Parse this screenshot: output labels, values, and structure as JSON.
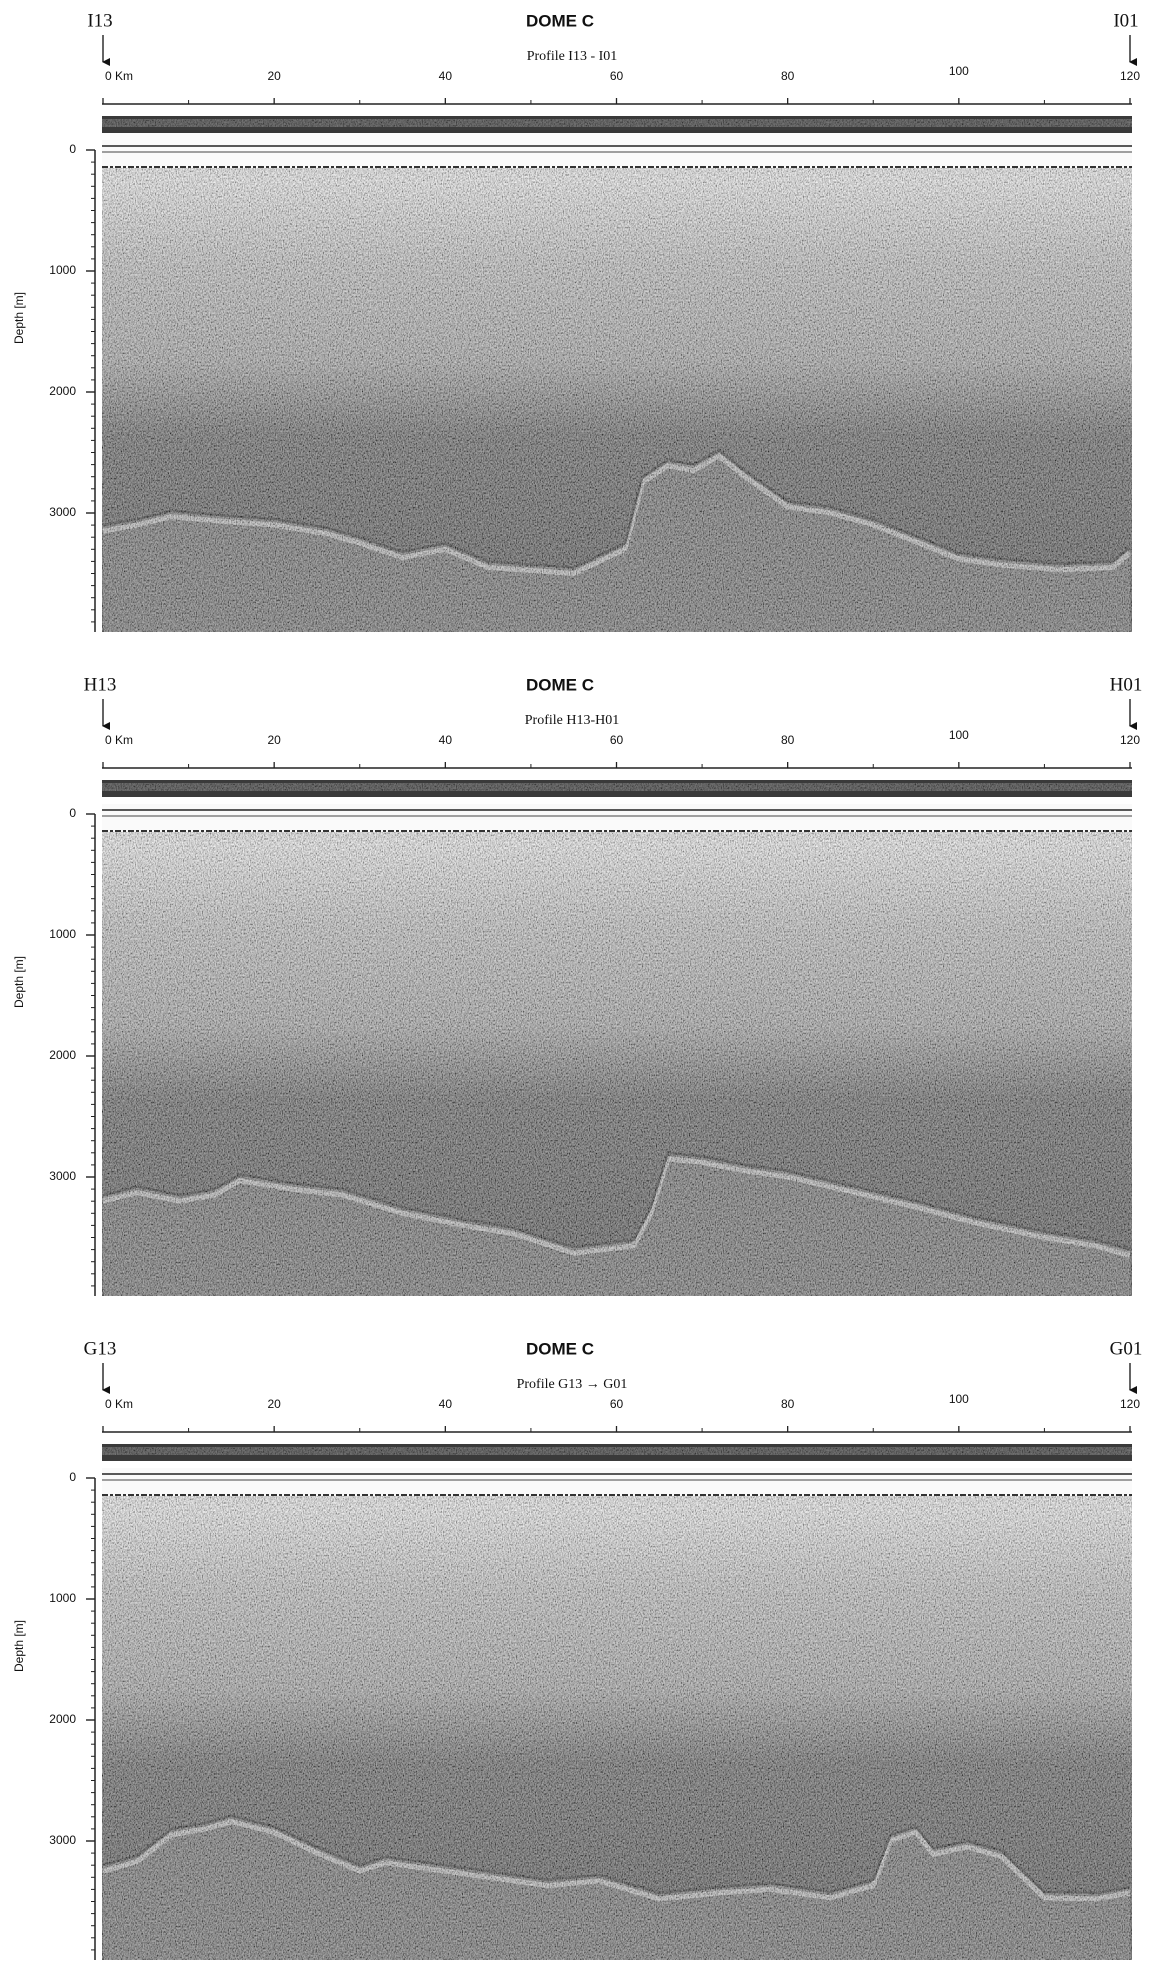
{
  "panels": [
    {
      "start_label": "I13",
      "title": "DOME C",
      "subtitle": "Profile I13 - I01",
      "end_label": "I01",
      "x_ticks": [
        {
          "value": 0,
          "label": "0 Km"
        },
        20,
        40,
        60,
        80,
        100,
        120
      ],
      "y_label": "Depth [m]",
      "y_ticks": [
        0,
        1000,
        2000,
        3000
      ]
    },
    {
      "start_label": "H13",
      "title": "DOME C",
      "subtitle": "Profile H13-H01",
      "end_label": "H01",
      "x_ticks": [
        {
          "value": 0,
          "label": "0 Km"
        },
        20,
        40,
        60,
        80,
        100,
        120
      ],
      "y_label": "Depth [m]",
      "y_ticks": [
        0,
        1000,
        2000,
        3000
      ]
    },
    {
      "start_label": "G13",
      "title": "DOME C",
      "subtitle": "Profile G13 → G01",
      "end_label": "G01",
      "x_ticks": [
        {
          "value": 0,
          "label": "0 Km"
        },
        20,
        40,
        60,
        80,
        100,
        120
      ],
      "y_label": "Depth [m]",
      "y_ticks": [
        0,
        1000,
        2000,
        3000
      ]
    }
  ]
}
